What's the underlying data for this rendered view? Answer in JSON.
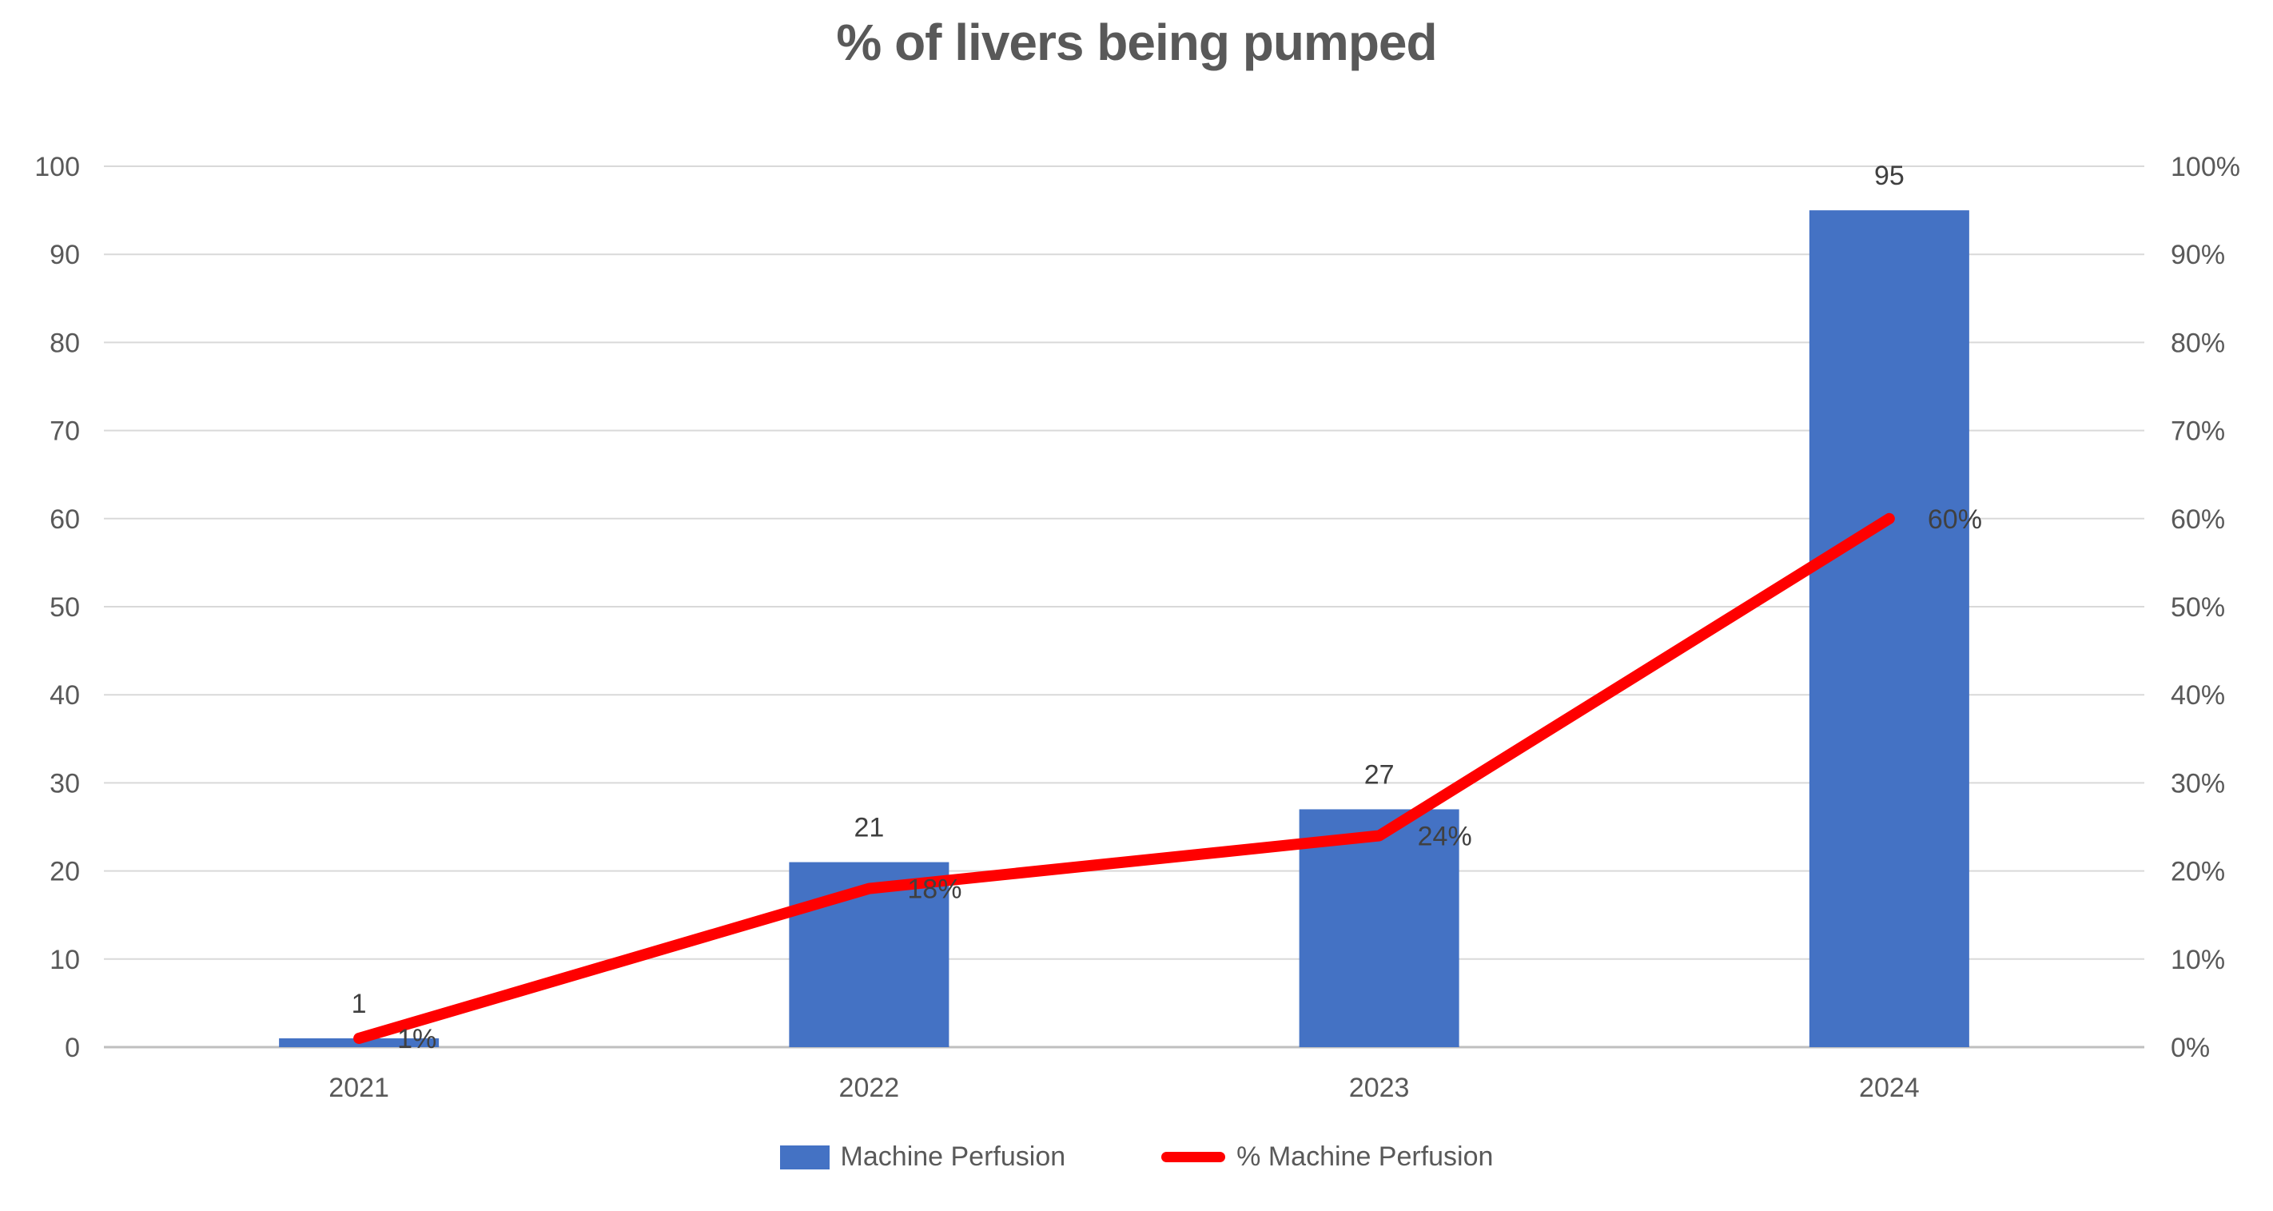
{
  "title": "% of livers being pumped",
  "legend": {
    "bar_label": "Machine Perfusion",
    "line_label": "% Machine Perfusion"
  },
  "colors": {
    "bar": "#4472C4",
    "line": "#FF0000",
    "title_text": "#595959",
    "axis_text": "#595959",
    "data_label_text": "#404040",
    "gridline": "#D9D9D9",
    "axis_line": "#BFBFBF",
    "background": "#FFFFFF"
  },
  "chart_data": {
    "type": "bar+line combo",
    "title": "% of livers being pumped",
    "categories": [
      "2021",
      "2022",
      "2023",
      "2024"
    ],
    "series": [
      {
        "name": "Machine Perfusion",
        "type": "bar",
        "axis": "left",
        "values": [
          1,
          21,
          27,
          95
        ],
        "data_labels": [
          "1",
          "21",
          "27",
          "95"
        ]
      },
      {
        "name": "% Machine Perfusion",
        "type": "line",
        "axis": "right",
        "values": [
          1,
          18,
          24,
          60
        ],
        "data_labels": [
          "1%",
          "18%",
          "24%",
          "60%"
        ]
      }
    ],
    "left_axis": {
      "min": 0,
      "max": 100,
      "step": 10,
      "tick_labels": [
        "0",
        "10",
        "20",
        "30",
        "40",
        "50",
        "60",
        "70",
        "80",
        "90",
        "100"
      ]
    },
    "right_axis": {
      "min": 0,
      "max": 100,
      "step": 10,
      "tick_labels": [
        "0%",
        "10%",
        "20%",
        "30%",
        "40%",
        "50%",
        "60%",
        "70%",
        "80%",
        "90%",
        "100%"
      ]
    },
    "grid": true,
    "legend_position": "bottom"
  }
}
